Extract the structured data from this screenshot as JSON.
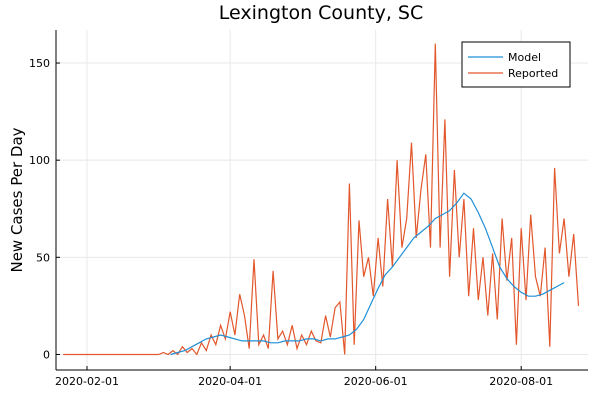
{
  "chart_data": {
    "type": "line",
    "title": "Lexington County, SC",
    "xlabel": "",
    "ylabel": "New Cases Per Day",
    "x_ticks": [
      "2020-02-01",
      "2020-04-01",
      "2020-06-01",
      "2020-08-01"
    ],
    "x_tick_days": [
      10,
      70,
      131,
      192
    ],
    "y_ticks": [
      0,
      50,
      100,
      150
    ],
    "xlim_days": [
      -3,
      220
    ],
    "ylim": [
      -8,
      167
    ],
    "x_origin_date": "2020-01-22",
    "grid": true,
    "legend_position": "top-right",
    "series": [
      {
        "name": "Model",
        "color": "#1f8fd6",
        "days": [
          45,
          48,
          51,
          54,
          57,
          60,
          63,
          66,
          69,
          72,
          75,
          78,
          81,
          84,
          87,
          90,
          93,
          96,
          99,
          102,
          105,
          108,
          111,
          114,
          117,
          120,
          123,
          126,
          129,
          132,
          135,
          138,
          141,
          144,
          147,
          150,
          153,
          156,
          159,
          162,
          165,
          168,
          171,
          174,
          177,
          180,
          183,
          186,
          189,
          192,
          195,
          198,
          201,
          204,
          207,
          210
        ],
        "values": [
          0,
          1,
          2,
          4,
          6,
          8,
          9,
          10,
          9,
          8,
          7,
          7,
          7,
          7,
          6,
          6,
          7,
          7,
          7,
          8,
          8,
          7,
          8,
          8,
          9,
          10,
          13,
          18,
          26,
          34,
          41,
          45,
          50,
          55,
          60,
          63,
          66,
          70,
          72,
          74,
          78,
          83,
          80,
          73,
          65,
          55,
          45,
          39,
          35,
          32,
          30,
          30,
          31,
          33,
          35,
          37
        ]
      },
      {
        "name": "Reported",
        "color": "#e2572c",
        "days": [
          0,
          5,
          10,
          15,
          20,
          25,
          30,
          35,
          40,
          42,
          44,
          46,
          48,
          50,
          52,
          54,
          56,
          58,
          60,
          62,
          64,
          66,
          68,
          70,
          72,
          74,
          76,
          78,
          80,
          82,
          84,
          86,
          88,
          90,
          92,
          94,
          96,
          98,
          100,
          102,
          104,
          106,
          108,
          110,
          112,
          114,
          116,
          118,
          120,
          122,
          124,
          126,
          128,
          130,
          132,
          134,
          136,
          138,
          140,
          142,
          144,
          146,
          148,
          150,
          152,
          154,
          156,
          158,
          160,
          162,
          164,
          166,
          168,
          170,
          172,
          174,
          176,
          178,
          180,
          182,
          184,
          186,
          188,
          190,
          192,
          194,
          196,
          198,
          200,
          202,
          204,
          206,
          208,
          210,
          212,
          214,
          216
        ],
        "values": [
          0,
          0,
          0,
          0,
          0,
          0,
          0,
          0,
          0,
          1,
          0,
          2,
          0,
          4,
          1,
          3,
          0,
          6,
          2,
          10,
          5,
          15,
          8,
          22,
          10,
          31,
          20,
          3,
          49,
          5,
          10,
          3,
          43,
          8,
          12,
          5,
          15,
          3,
          10,
          5,
          12,
          7,
          6,
          20,
          9,
          24,
          27,
          0,
          88,
          5,
          69,
          40,
          50,
          30,
          60,
          35,
          80,
          45,
          100,
          55,
          70,
          109,
          60,
          85,
          103,
          55,
          160,
          55,
          121,
          40,
          95,
          50,
          80,
          30,
          65,
          28,
          50,
          20,
          52,
          18,
          70,
          38,
          60,
          5,
          65,
          28,
          72,
          40,
          30,
          55,
          4,
          96,
          52,
          70,
          40,
          62,
          25
        ]
      }
    ]
  }
}
